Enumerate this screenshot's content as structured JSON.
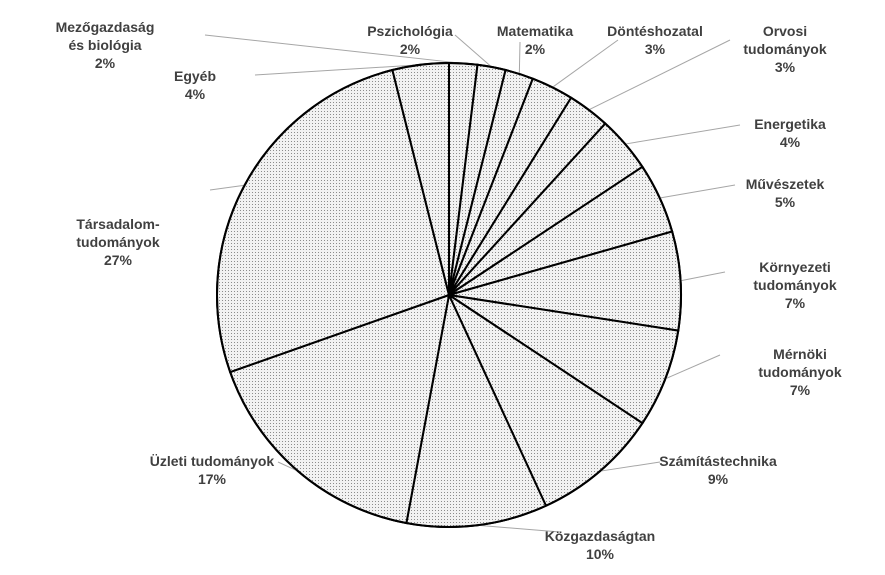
{
  "chart_data": {
    "type": "pie",
    "categories": [
      "Mezőgazdaság\nés biológia",
      "Pszichológia",
      "Matematika",
      "Döntéshozatal",
      "Orvosi tudományok",
      "Energetika",
      "Művészetek",
      "Környezeti\ntudományok",
      "Mérnöki tudományok",
      "Számítástechnika",
      "Közgazdaságtan",
      "Üzleti tudományok",
      "Társadalom-\ntudományok",
      "Egyéb"
    ],
    "values": [
      2,
      2,
      2,
      3,
      3,
      4,
      5,
      7,
      7,
      9,
      10,
      17,
      27,
      4
    ],
    "value_labels": [
      "2%",
      "2%",
      "2%",
      "3%",
      "3%",
      "4%",
      "5%",
      "7%",
      "7%",
      "9%",
      "10%",
      "17%",
      "27%",
      "4%"
    ]
  }
}
